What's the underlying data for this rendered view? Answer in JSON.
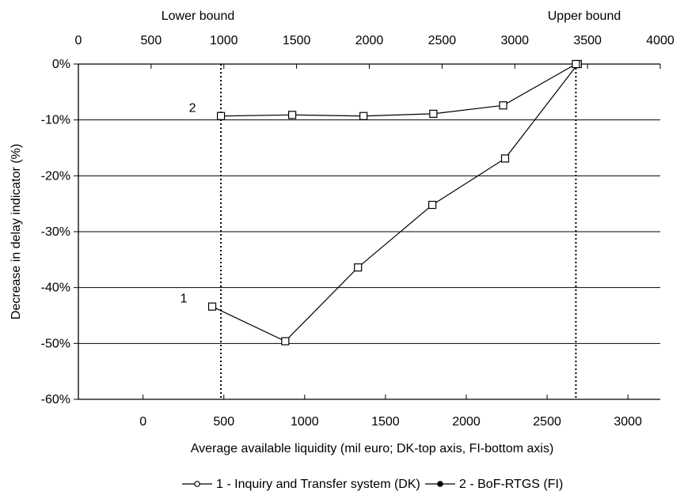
{
  "chart_data": {
    "type": "line",
    "xlabel": "Average available liquidity (mil euro; DK-top axis, FI-bottom axis)",
    "ylabel": "Decrease in delay indicator (%)",
    "top_axis": {
      "ticks": [
        0,
        500,
        1000,
        1500,
        2000,
        2500,
        3000,
        3500,
        4000
      ],
      "range": [
        0,
        4000
      ],
      "lower_bound_label": "Lower bound",
      "upper_bound_label": "Upper bound",
      "lower_bound_value": 980,
      "upper_bound_value": 3420
    },
    "bottom_axis": {
      "ticks": [
        0,
        500,
        1000,
        1500,
        2000,
        2500,
        3000
      ],
      "range": [
        -400,
        3200
      ]
    },
    "y_axis": {
      "ticks": [
        0,
        -10,
        -20,
        -30,
        -40,
        -50,
        -60
      ],
      "tick_labels": [
        "0%",
        "-10%",
        "-20%",
        "-30%",
        "-40%",
        "-50%",
        "-60%"
      ],
      "range": [
        -60,
        0
      ]
    },
    "grid": "horizontal",
    "series": [
      {
        "name": "1 - Inquiry and Transfer system (DK)",
        "label": "1",
        "marker": "square",
        "x": [
          428,
          880,
          1330,
          1790,
          2240,
          2690
        ],
        "y": [
          -43.4,
          -49.6,
          -36.4,
          -25.2,
          -16.9,
          0
        ]
      },
      {
        "name": "2 - BoF-RTGS (FI)",
        "label": "2",
        "marker": "square",
        "x": [
          980,
          1470,
          1960,
          2440,
          2920,
          3420
        ],
        "y": [
          -9.3,
          -9.1,
          -9.3,
          -8.9,
          -7.4,
          0
        ]
      }
    ],
    "legend": {
      "position": "bottom",
      "items": [
        {
          "label": "1 - Inquiry and Transfer system (DK)",
          "marker": "open-circle"
        },
        {
          "label": "2 - BoF-RTGS (FI)",
          "marker": "filled-circle"
        }
      ]
    }
  }
}
